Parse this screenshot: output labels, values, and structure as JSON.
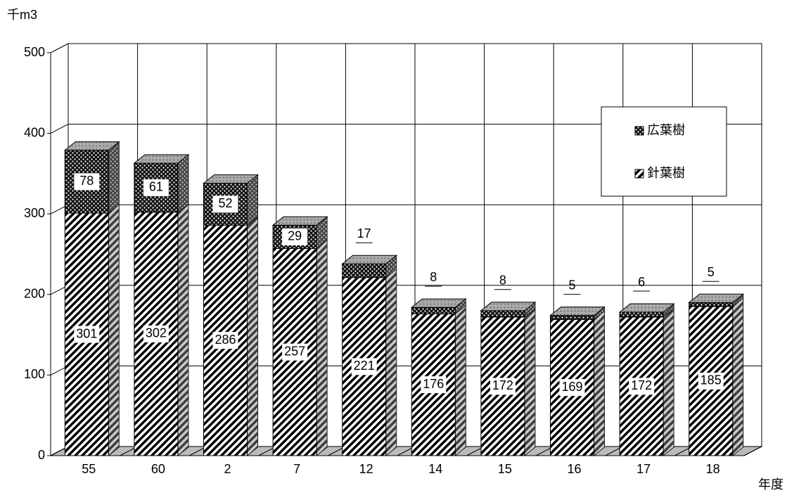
{
  "chart_data": {
    "type": "bar",
    "stacked": true,
    "three_d": true,
    "y_unit": "千m3",
    "x_label": "年度",
    "categories": [
      "55",
      "60",
      "2",
      "7",
      "12",
      "14",
      "15",
      "16",
      "17",
      "18"
    ],
    "series": [
      {
        "name": "針葉樹",
        "color": "#000000",
        "pattern": "hatch",
        "values": [
          301,
          302,
          286,
          257,
          221,
          176,
          172,
          169,
          172,
          185
        ]
      },
      {
        "name": "広葉樹",
        "color": "#000000",
        "pattern": "dots",
        "values": [
          78,
          61,
          52,
          29,
          17,
          8,
          8,
          5,
          6,
          5
        ]
      }
    ],
    "ylim": [
      0,
      500
    ],
    "yticks": [
      0,
      100,
      200,
      300,
      400,
      500
    ],
    "grid": true,
    "legend": "right"
  }
}
